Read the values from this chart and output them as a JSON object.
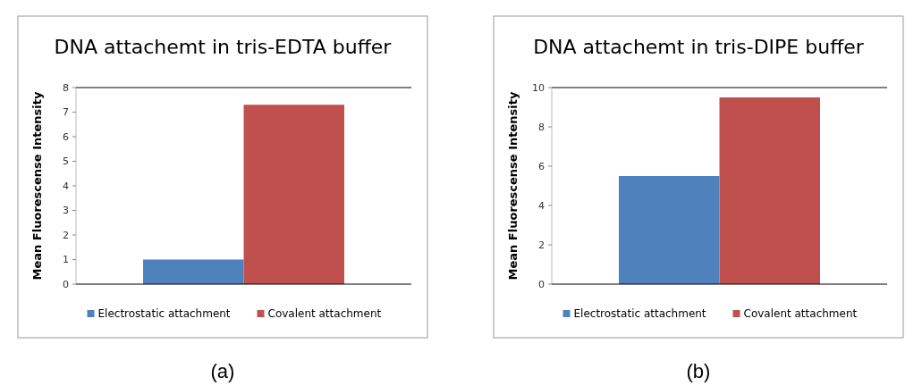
{
  "chart_data": [
    {
      "type": "bar",
      "title": "DNA attachemt in tris-EDTA buffer",
      "ylabel": "Mean Fluorescense Intensity",
      "categories": [
        null
      ],
      "series": [
        {
          "name": "Electrostatic attachment",
          "color": "#4f81bd",
          "values": [
            1.0
          ]
        },
        {
          "name": "Covalent attachment",
          "color": "#c0504d",
          "values": [
            7.3
          ]
        }
      ],
      "ylim": [
        0,
        8
      ],
      "yticks": [
        0,
        1,
        2,
        3,
        4,
        5,
        6,
        7,
        8
      ],
      "legend": "bottom",
      "annotations": [
        "(a)"
      ]
    },
    {
      "type": "bar",
      "title": "DNA attachemt in tris-DIPE buffer",
      "ylabel": "Mean Fluorescense Intensity",
      "categories": [
        null
      ],
      "series": [
        {
          "name": "Electrostatic attachment",
          "color": "#4f81bd",
          "values": [
            5.5
          ]
        },
        {
          "name": "Covalent attachment",
          "color": "#c0504d",
          "values": [
            9.5
          ]
        }
      ],
      "ylim": [
        0,
        10
      ],
      "yticks": [
        0,
        2,
        4,
        6,
        8,
        10
      ],
      "legend": "bottom",
      "annotations": [
        "(b)"
      ]
    }
  ]
}
